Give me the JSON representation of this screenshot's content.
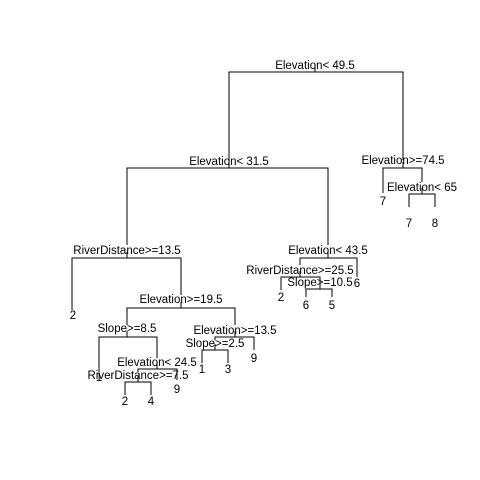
{
  "tree": {
    "root": {
      "label": "Elevation< 49.5",
      "left": {
        "label": "Elevation< 31.5",
        "left": {
          "label": "RiverDistance>=13.5",
          "left": {
            "leaf": "2"
          },
          "right": {
            "label": "Elevation>=19.5",
            "left": {
              "label": "Slope>=8.5",
              "left": {
                "leaf": "1"
              },
              "right": {
                "label": "Elevation< 24.5",
                "left": {
                  "label": "RiverDistance>=7.5",
                  "left": {
                    "leaf": "2"
                  },
                  "right": {
                    "leaf": "4"
                  }
                },
                "right": {
                  "leaf": "9"
                }
              }
            },
            "right": {
              "label": "Elevation>=13.5",
              "left": {
                "label": "Slope>=2.5",
                "left": {
                  "leaf": "1"
                },
                "right": {
                  "leaf": "3"
                }
              },
              "right": {
                "leaf": "9"
              }
            }
          }
        },
        "right": {
          "label": "Elevation< 43.5",
          "left": {
            "label": "RiverDistance>=25.5",
            "left": {
              "leaf": "2"
            },
            "right": {
              "label": "Slope>=10.5",
              "left": {
                "leaf": "6"
              },
              "right": {
                "leaf": "5"
              }
            }
          },
          "right": {
            "leaf": "6"
          }
        }
      },
      "right": {
        "label": "Elevation>=74.5",
        "left": {
          "leaf": "7"
        },
        "right": {
          "label": "Elevation< 65",
          "left": {
            "leaf": "7"
          },
          "right": {
            "leaf": "8"
          }
        }
      }
    }
  }
}
